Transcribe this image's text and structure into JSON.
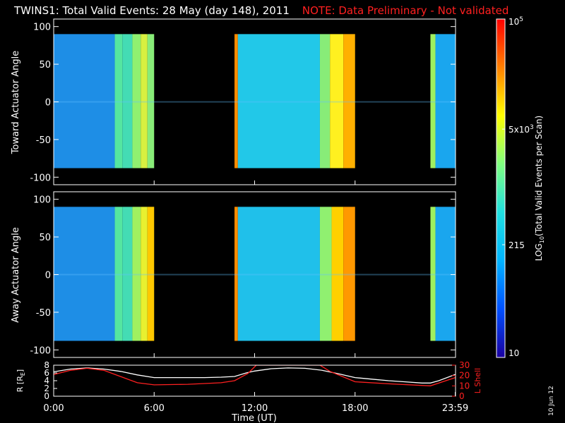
{
  "title": {
    "main": "TWINS1: Total Valid Events: 28 May (day 148), 2011",
    "note": "NOTE: Data Preliminary - Not validated"
  },
  "date_stamp": "10 Jun 12",
  "colors": {
    "background": "#000000",
    "note": "#ff2020",
    "r_line": "#ffffff",
    "lshell_line": "#ff2020"
  },
  "colorbar": {
    "label": "LOG10(Total Valid Events per Scan)",
    "label_main": "LOG",
    "label_sub": "10",
    "label_rest": "(Total Valid Events per Scan)",
    "scale": "log",
    "range": [
      10,
      100000
    ],
    "ticks": [
      {
        "value": 10,
        "label": "10"
      },
      {
        "value": 215,
        "label": "215"
      },
      {
        "value": 5000,
        "label": "5x10",
        "sup": "3"
      },
      {
        "value": 100000,
        "label": "10",
        "sup": "5"
      }
    ],
    "stops": [
      "#1a00a0",
      "#0050ff",
      "#00b4ff",
      "#20e0e0",
      "#80ff80",
      "#ffff00",
      "#ff8000",
      "#ff0000"
    ]
  },
  "chart_data": [
    {
      "type": "heatmap",
      "name": "toward",
      "ylabel": "Toward Actuator Angle",
      "xlim": [
        0,
        24
      ],
      "ylim": [
        -110,
        110
      ],
      "data_ylim": [
        -88,
        90
      ],
      "yticks": [
        -100,
        -50,
        0,
        50,
        100
      ],
      "color_scale": "log",
      "data_gaps_hours": [
        [
          6.0,
          10.8
        ],
        [
          18.0,
          22.5
        ]
      ],
      "segments": [
        {
          "t0": 0.0,
          "t1": 3.65,
          "log10_events": 2.05,
          "color": "#1e8ee6"
        },
        {
          "t0": 3.65,
          "t1": 4.1,
          "log10_events": 2.95,
          "color": "#55e6a0"
        },
        {
          "t0": 4.1,
          "t1": 4.7,
          "log10_events": 2.85,
          "color": "#44dcb4"
        },
        {
          "t0": 4.7,
          "t1": 5.2,
          "log10_events": 3.15,
          "color": "#90f070"
        },
        {
          "t0": 5.2,
          "t1": 5.6,
          "log10_events": 3.4,
          "color": "#d8f040"
        },
        {
          "t0": 5.6,
          "t1": 6.0,
          "log10_events": 3.1,
          "color": "#88ec78"
        },
        {
          "t0": 10.8,
          "t1": 11.0,
          "log10_events": 4.2,
          "color": "#ff8c00"
        },
        {
          "t0": 11.0,
          "t1": 15.9,
          "log10_events": 2.45,
          "color": "#22c8e8"
        },
        {
          "t0": 15.9,
          "t1": 16.5,
          "log10_events": 3.1,
          "color": "#88ec78"
        },
        {
          "t0": 16.5,
          "t1": 17.3,
          "log10_events": 3.6,
          "color": "#fff020"
        },
        {
          "t0": 17.3,
          "t1": 18.0,
          "log10_events": 3.9,
          "color": "#ffb000"
        },
        {
          "t0": 22.5,
          "t1": 22.8,
          "log10_events": 3.4,
          "color": "#a0f060"
        },
        {
          "t0": 22.8,
          "t1": 23.98,
          "log10_events": 2.25,
          "color": "#1aa6ee"
        }
      ]
    },
    {
      "type": "heatmap",
      "name": "away",
      "ylabel": "Away Actuator Angle",
      "xlim": [
        0,
        24
      ],
      "ylim": [
        -110,
        110
      ],
      "data_ylim": [
        -88,
        90
      ],
      "yticks": [
        -100,
        -50,
        0,
        50,
        100
      ],
      "color_scale": "log",
      "data_gaps_hours": [
        [
          6.0,
          10.8
        ],
        [
          18.0,
          22.5
        ]
      ],
      "segments": [
        {
          "t0": 0.0,
          "t1": 3.65,
          "log10_events": 2.05,
          "color": "#1e8ee6"
        },
        {
          "t0": 3.65,
          "t1": 4.1,
          "log10_events": 2.95,
          "color": "#55e6a0"
        },
        {
          "t0": 4.1,
          "t1": 4.7,
          "log10_events": 2.85,
          "color": "#44dcb4"
        },
        {
          "t0": 4.7,
          "t1": 5.2,
          "log10_events": 3.2,
          "color": "#a0f060"
        },
        {
          "t0": 5.2,
          "t1": 5.6,
          "log10_events": 3.5,
          "color": "#e8f030"
        },
        {
          "t0": 5.6,
          "t1": 6.0,
          "log10_events": 3.7,
          "color": "#ffc800"
        },
        {
          "t0": 10.8,
          "t1": 11.0,
          "log10_events": 4.2,
          "color": "#ff8c00"
        },
        {
          "t0": 11.0,
          "t1": 15.9,
          "log10_events": 2.4,
          "color": "#20c0ea"
        },
        {
          "t0": 15.9,
          "t1": 16.6,
          "log10_events": 3.1,
          "color": "#90f070"
        },
        {
          "t0": 16.6,
          "t1": 17.3,
          "log10_events": 3.7,
          "color": "#ffd000"
        },
        {
          "t0": 17.3,
          "t1": 18.0,
          "log10_events": 4.05,
          "color": "#ff9800"
        },
        {
          "t0": 22.5,
          "t1": 22.8,
          "log10_events": 3.4,
          "color": "#a0f060"
        },
        {
          "t0": 22.8,
          "t1": 23.98,
          "log10_events": 2.25,
          "color": "#1aa6ee"
        }
      ]
    },
    {
      "type": "line",
      "name": "ephemeris",
      "xlabel": "Time (UT)",
      "xlim": [
        0,
        24
      ],
      "xticks": [
        {
          "value": 0,
          "label": "0:00"
        },
        {
          "value": 6,
          "label": "6:00"
        },
        {
          "value": 12,
          "label": "12:00"
        },
        {
          "value": 18,
          "label": "18:00"
        },
        {
          "value": 23.983,
          "label": "23:59"
        }
      ],
      "y_left": {
        "label": "R [R",
        "label_sub": "E",
        "label_end": "]",
        "ylim": [
          0,
          8
        ],
        "ticks": [
          0,
          2,
          4,
          6,
          8
        ]
      },
      "y_right": {
        "label": "L Shell",
        "ylim": [
          0,
          30
        ],
        "ticks": [
          0,
          10,
          20,
          30
        ]
      },
      "series": [
        {
          "name": "R [RE]",
          "axis": "left",
          "color": "#ffffff",
          "x": [
            0,
            1,
            2,
            3,
            4,
            5,
            6,
            7,
            8,
            9,
            10,
            10.8,
            11.5,
            12,
            13,
            14,
            15,
            16,
            17,
            18,
            19,
            20,
            21,
            22,
            22.5,
            23,
            23.98
          ],
          "y": [
            6.3,
            7.0,
            7.3,
            7.0,
            6.4,
            5.5,
            4.8,
            4.8,
            4.8,
            4.8,
            4.9,
            5.1,
            6.0,
            6.5,
            7.1,
            7.3,
            7.2,
            6.7,
            5.8,
            4.8,
            4.4,
            4.0,
            3.7,
            3.4,
            3.4,
            4.0,
            5.6
          ]
        },
        {
          "name": "L Shell",
          "axis": "right",
          "color": "#ff2020",
          "x": [
            0,
            1,
            2,
            3,
            4,
            5,
            6,
            8,
            10,
            10.8,
            11.6,
            12.1,
            15.9,
            16.5,
            18.0,
            20,
            22.5,
            23.98
          ],
          "y": [
            21,
            25,
            27,
            25,
            19,
            13,
            11,
            11.5,
            13,
            15,
            22,
            30,
            30,
            24,
            14,
            12,
            10,
            18
          ]
        }
      ]
    }
  ]
}
